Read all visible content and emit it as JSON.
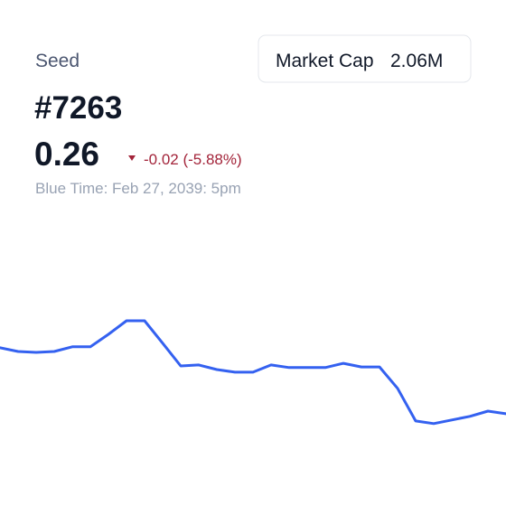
{
  "header": {
    "name": "Seed",
    "id": "#7263",
    "price": "0.26",
    "change": "-0.02 (-5.88%)",
    "timestamp": "Blue Time: Feb 27, 2039: 5pm"
  },
  "market_cap": {
    "label": "Market Cap",
    "value": "2.06M"
  },
  "chart_data": {
    "type": "line",
    "color": "#3461f0",
    "ylim": [
      0.232,
      0.3
    ],
    "values": [
      0.28,
      0.2789,
      0.2786,
      0.2789,
      0.2803,
      0.2803,
      0.2841,
      0.2882,
      0.2882,
      0.2814,
      0.2745,
      0.2748,
      0.2734,
      0.2726,
      0.2726,
      0.2748,
      0.274,
      0.274,
      0.274,
      0.2753,
      0.2742,
      0.2742,
      0.2677,
      0.2578,
      0.257,
      0.2581,
      0.2592,
      0.2608,
      0.26
    ]
  }
}
